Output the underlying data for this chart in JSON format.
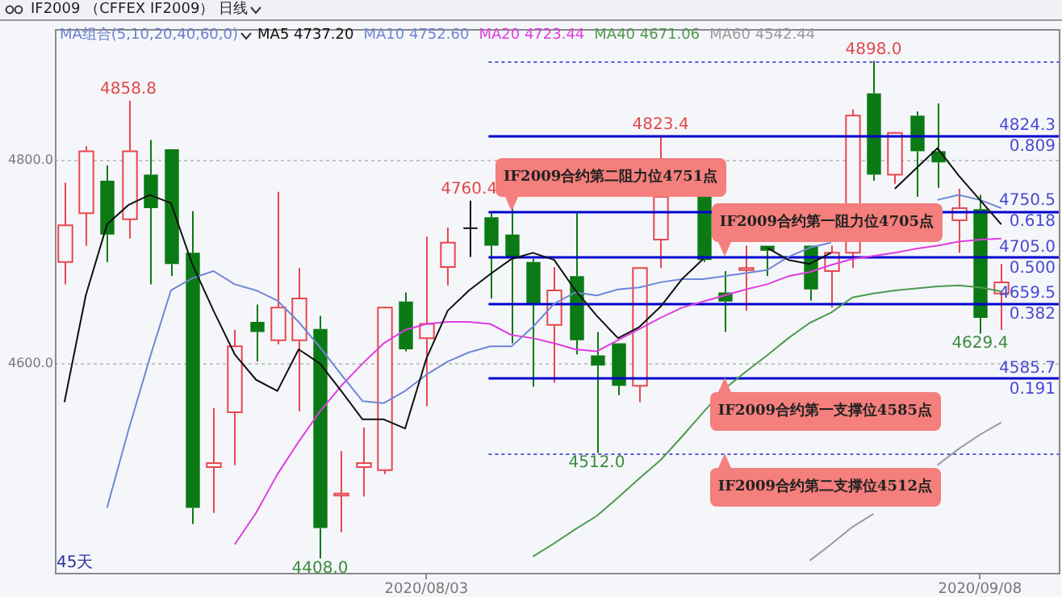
{
  "chart_data": {
    "type": "candlestick",
    "title": "IF2009 （CFFEX IF2009） 日线",
    "subtitle": "MA组合(5,10,20,40,60,0)",
    "categories": [
      null,
      null,
      null,
      null,
      null,
      null,
      null,
      null,
      null,
      null,
      null,
      null,
      null,
      null,
      null,
      null,
      null,
      "2020/08/03",
      null,
      null,
      null,
      null,
      null,
      null,
      null,
      null,
      null,
      null,
      null,
      null,
      null,
      null,
      null,
      null,
      null,
      null,
      null,
      null,
      null,
      null,
      null,
      null,
      null,
      "2020/09/08",
      null
    ],
    "ohlc": [
      [
        4700,
        4778,
        4678,
        4736
      ],
      [
        4748,
        4814,
        4716,
        4809
      ],
      [
        4780,
        4795,
        4700,
        4727
      ],
      [
        4742,
        4858.8,
        4723,
        4809
      ],
      [
        4786,
        4820,
        4678,
        4753
      ],
      [
        4811,
        4811,
        4686,
        4698
      ],
      [
        4709,
        4750,
        4442,
        4458
      ],
      [
        4498,
        4556,
        4453,
        4502
      ],
      [
        4552,
        4633,
        4500,
        4617
      ],
      [
        4641,
        4658,
        4602,
        4631
      ],
      [
        4623,
        4769,
        4619,
        4655
      ],
      [
        4623,
        4694,
        4553,
        4664
      ],
      [
        4634,
        4647,
        4408,
        4438
      ],
      [
        4470,
        4514,
        4434,
        4472
      ],
      [
        4498,
        4537,
        4469,
        4502
      ],
      [
        4495,
        4656,
        4491,
        4655
      ],
      [
        4661,
        4670,
        4612,
        4614
      ],
      [
        4625,
        4725,
        4558,
        4639
      ],
      [
        4695,
        4734,
        4677,
        4719
      ],
      [
        4734,
        4760.4,
        4705,
        4734
      ],
      [
        4744,
        4748,
        4664,
        4716
      ],
      [
        4727,
        4755,
        4620,
        4705
      ],
      [
        4700,
        4703,
        4577,
        4658
      ],
      [
        4638,
        4695,
        4581,
        4672
      ],
      [
        4686,
        4748,
        4609,
        4623
      ],
      [
        4608,
        4631,
        4512,
        4598
      ],
      [
        4620,
        4620,
        4569,
        4578
      ],
      [
        4578,
        4694,
        4562,
        4694
      ],
      [
        4722,
        4823.4,
        4694,
        4764
      ],
      null,
      [
        4764,
        4764,
        4700,
        4702
      ],
      [
        4670,
        4691,
        4631,
        4661
      ],
      [
        4692,
        4716,
        4652,
        4694
      ],
      [
        4716,
        4716,
        4686,
        4711
      ],
      null,
      [
        4716,
        4716,
        4662,
        4673
      ],
      [
        4691,
        4716,
        4655,
        4709
      ],
      [
        4709,
        4850,
        4694,
        4844
      ],
      [
        4866,
        4898,
        4780,
        4786
      ],
      [
        4786,
        4828,
        4777,
        4827
      ],
      [
        4844,
        4848,
        4764,
        4809
      ],
      [
        4809,
        4856,
        4773,
        4798
      ],
      [
        4741,
        4772,
        4709,
        4753
      ],
      [
        4752,
        4766,
        4629.4,
        4645
      ],
      [
        4669,
        4698,
        4633,
        4680
      ]
    ],
    "value_labels": [
      null,
      null,
      null,
      "4858.8",
      null,
      null,
      null,
      null,
      null,
      null,
      null,
      null,
      "4408.0",
      null,
      null,
      null,
      null,
      null,
      null,
      "4760.4",
      null,
      null,
      null,
      null,
      null,
      "4512.0",
      null,
      null,
      "4823.4",
      null,
      null,
      null,
      null,
      null,
      null,
      null,
      null,
      null,
      "4898.0",
      null,
      null,
      null,
      null,
      "4629.4",
      null
    ],
    "series": [
      {
        "name": "MA5 4737.20",
        "type": "line",
        "color": "#111111",
        "values": [
          4562,
          4667,
          4737,
          4756,
          4766,
          4758,
          4698,
          4652,
          4609,
          4584,
          4573,
          4614,
          4600,
          4573,
          4545,
          4545,
          4536,
          4605,
          4652,
          4672,
          4688,
          4703,
          4709,
          4702,
          4672,
          4647,
          4625,
          4636,
          4656,
          4683,
          4703,
          null,
          null,
          4714,
          4702,
          4698,
          4709,
          null,
          null,
          4772,
          4792,
          4812,
          4785,
          4761,
          4737
        ]
      },
      {
        "name": "MA10 4752.60",
        "type": "line",
        "color": "#6f86d6",
        "values": [
          null,
          null,
          4458,
          4534,
          4605,
          4672,
          4684,
          4691,
          4678,
          4672,
          4662,
          4641,
          4616,
          4589,
          4563,
          4561,
          4573,
          4589,
          4602,
          4611,
          4617,
          4617,
          4636,
          4659,
          4670,
          4667,
          4673,
          4675,
          4680,
          4683,
          4683,
          4686,
          4689,
          4692,
          4705,
          4714,
          4719,
          null,
          null,
          null,
          null,
          4761,
          4766,
          4761,
          4753
        ]
      },
      {
        "name": "MA20 4723.44",
        "type": "line",
        "color": "#e03ce0",
        "values": [
          null,
          null,
          null,
          null,
          null,
          null,
          null,
          null,
          4422,
          4453,
          4491,
          4523,
          4553,
          4578,
          4600,
          4620,
          4633,
          4639,
          4641,
          4641,
          4639,
          4628,
          4625,
          4620,
          4614,
          4612,
          4623,
          4634,
          4645,
          4655,
          4661,
          4667,
          4673,
          4678,
          4686,
          4690,
          4697,
          4703,
          4706,
          4709,
          4713,
          4716,
          4720,
          4722,
          4723
        ]
      },
      {
        "name": "MA40 4671.06",
        "type": "line",
        "color": "#4f9a4f",
        "values": [
          null,
          null,
          null,
          null,
          null,
          null,
          null,
          null,
          null,
          null,
          null,
          null,
          null,
          null,
          null,
          null,
          null,
          null,
          null,
          null,
          null,
          null,
          4410,
          4423,
          4437,
          4450,
          4468,
          4487,
          4505,
          4528,
          4552,
          4575,
          4592,
          4608,
          4625,
          4640,
          4650,
          4665,
          4669,
          4672,
          4674,
          4676,
          4677,
          4675,
          4671
        ]
      },
      {
        "name": "MA60 4542.44",
        "type": "line",
        "color": "#9a9a9a",
        "values": [
          null,
          null,
          null,
          null,
          null,
          null,
          null,
          null,
          null,
          null,
          null,
          null,
          null,
          null,
          null,
          null,
          null,
          null,
          null,
          null,
          null,
          null,
          null,
          null,
          null,
          null,
          null,
          null,
          null,
          null,
          null,
          null,
          null,
          null,
          null,
          4406,
          4422,
          4439,
          4452,
          null,
          null,
          4500,
          4516,
          4530,
          4542
        ]
      }
    ],
    "ylim": [
      4394,
      4928
    ],
    "yticks": [
      {
        "value": 4800,
        "label": "4800.0"
      },
      {
        "value": 4600,
        "label": "4600.0"
      }
    ],
    "grid": "y",
    "legend": "top",
    "ref_lines": [
      {
        "axis": "y",
        "value": 4898,
        "line_style": "dotted",
        "color": "#5a5ad8"
      },
      {
        "axis": "y",
        "value": 4824.3,
        "label": "4824.3\n0.809",
        "color": "#0000cc"
      },
      {
        "axis": "y",
        "value": 4750.5,
        "label": "4750.5\n0.618",
        "color": "#0000cc"
      },
      {
        "axis": "y",
        "value": 4705,
        "label": "4705.0\n0.500",
        "color": "#0000cc"
      },
      {
        "axis": "y",
        "value": 4659.5,
        "label": "4659.5\n0.382",
        "color": "#0000cc"
      },
      {
        "axis": "y",
        "value": 4585.7,
        "label": "4585.7\n0.191",
        "color": "#0000cc"
      },
      {
        "axis": "y",
        "value": 4512,
        "line_style": "dotted",
        "color": "#5a5ad8"
      }
    ],
    "annotations": [
      {
        "text": "IF2009合约第二阻力位4751点",
        "y": 4750.5
      },
      {
        "text": "IF2009合约第一阻力位4705点",
        "y": 4705
      },
      {
        "text": "IF2009合约第一支撑位4585点",
        "y": 4585.7
      },
      {
        "text": "IF2009合约第二支撑位4512点",
        "y": 4512
      },
      "45天"
    ]
  }
}
